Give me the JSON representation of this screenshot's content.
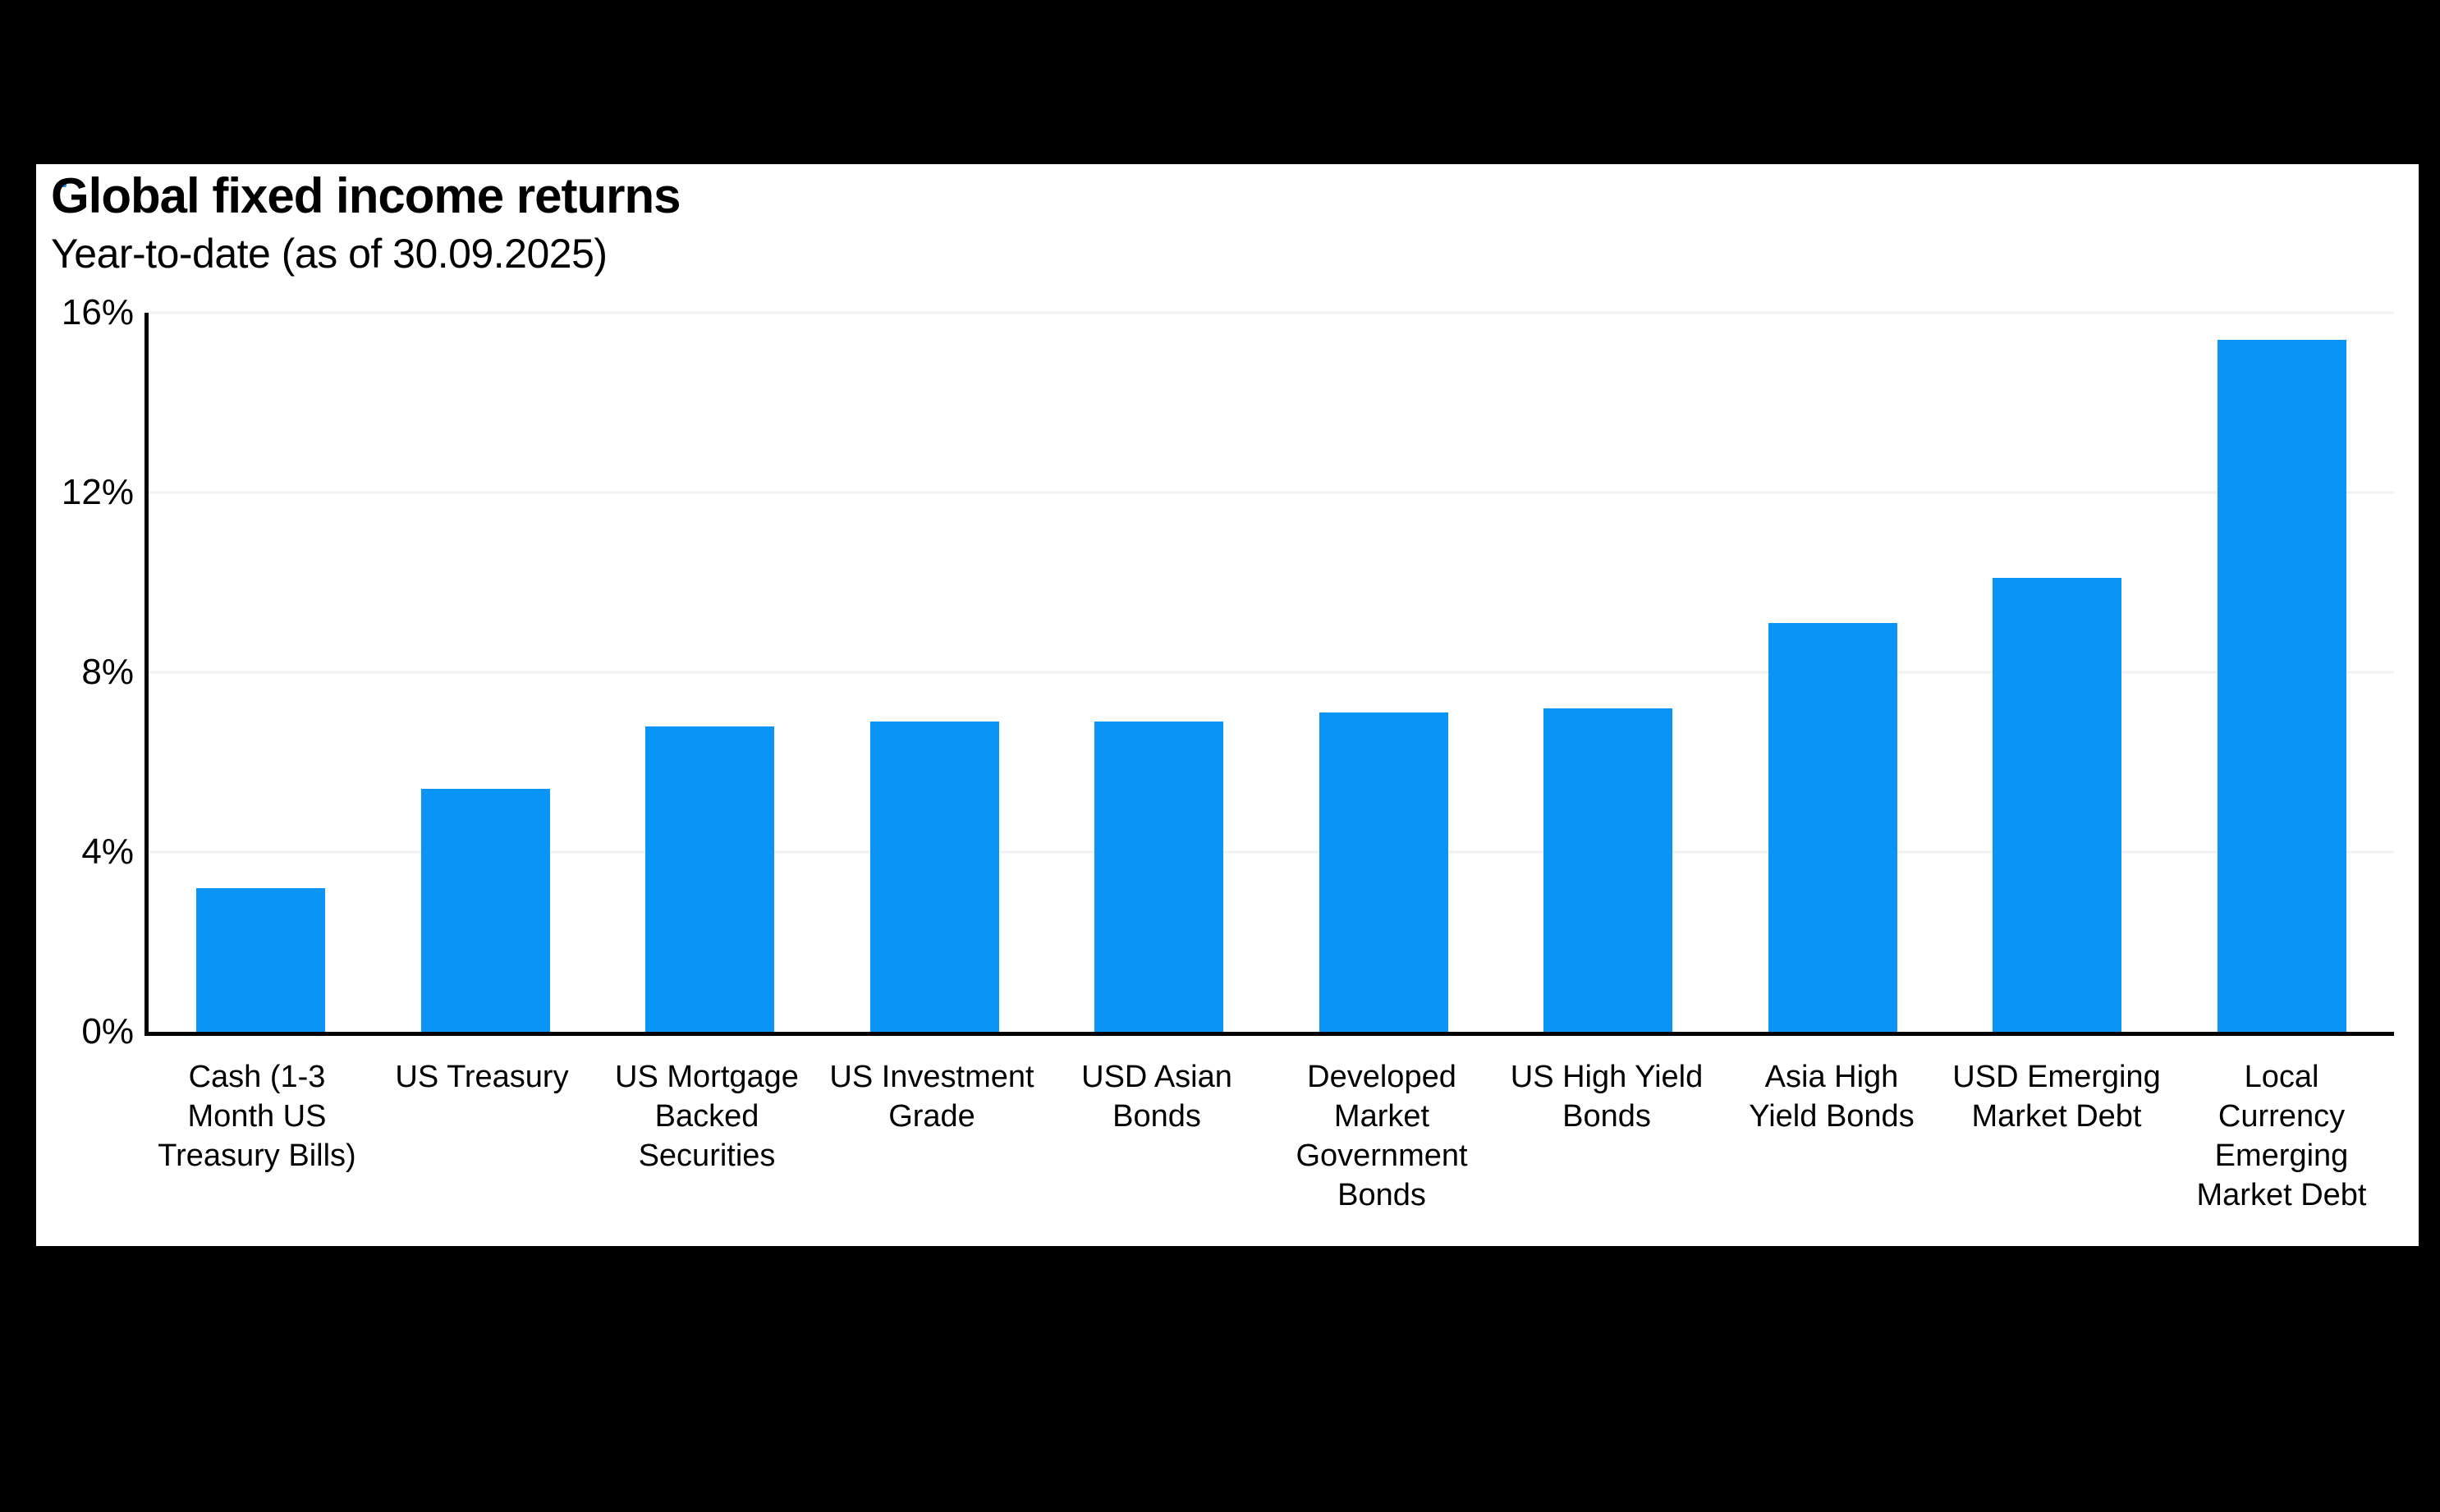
{
  "colors": {
    "page_bg": "#000000",
    "card_bg": "#FFFFFF",
    "text": "#000000",
    "axis": "#000000",
    "gridline": "#F1F1F1",
    "bar": "#0A94F6"
  },
  "header": {
    "title": "Global fixed income returns",
    "subtitle": "Year-to-date (as of 30.09.2025)"
  },
  "chart_data": {
    "type": "bar",
    "title": "Global fixed income returns",
    "subtitle": "Year-to-date (as of 30.09.2025)",
    "xlabel": "",
    "ylabel": "",
    "unit": "percent",
    "ylim": [
      0,
      16
    ],
    "yticks": [
      0,
      4,
      8,
      12,
      16
    ],
    "ytick_labels": [
      "0%",
      "4%",
      "8%",
      "12%",
      "16%"
    ],
    "grid": "horizontal-light",
    "legend": "none",
    "bar_color": "#0A94F6",
    "categories": [
      "Cash (1-3 Month US Treasury Bills)",
      "US Treasury",
      "US Mortgage Backed Securities",
      "US Investment Grade",
      "USD Asian Bonds",
      "Developed Market Government Bonds",
      "US High Yield Bonds",
      "Asia High Yield Bonds",
      "USD Emerging Market Debt",
      "Local Currency Emerging Market Debt"
    ],
    "category_lines": [
      [
        "Cash (1-3",
        "Month US",
        "Treasury Bills)"
      ],
      [
        "US Treasury"
      ],
      [
        "US Mortgage",
        "Backed",
        "Securities"
      ],
      [
        "US Investment",
        "Grade"
      ],
      [
        "USD Asian",
        "Bonds"
      ],
      [
        "Developed",
        "Market",
        "Government",
        "Bonds"
      ],
      [
        "US High Yield",
        "Bonds"
      ],
      [
        "Asia High",
        "Yield Bonds"
      ],
      [
        "USD Emerging",
        "Market Debt"
      ],
      [
        "Local",
        "Currency",
        "Emerging",
        "Market Debt"
      ]
    ],
    "values": [
      3.2,
      5.4,
      6.8,
      6.9,
      6.9,
      7.1,
      7.2,
      9.1,
      10.1,
      15.4
    ]
  }
}
